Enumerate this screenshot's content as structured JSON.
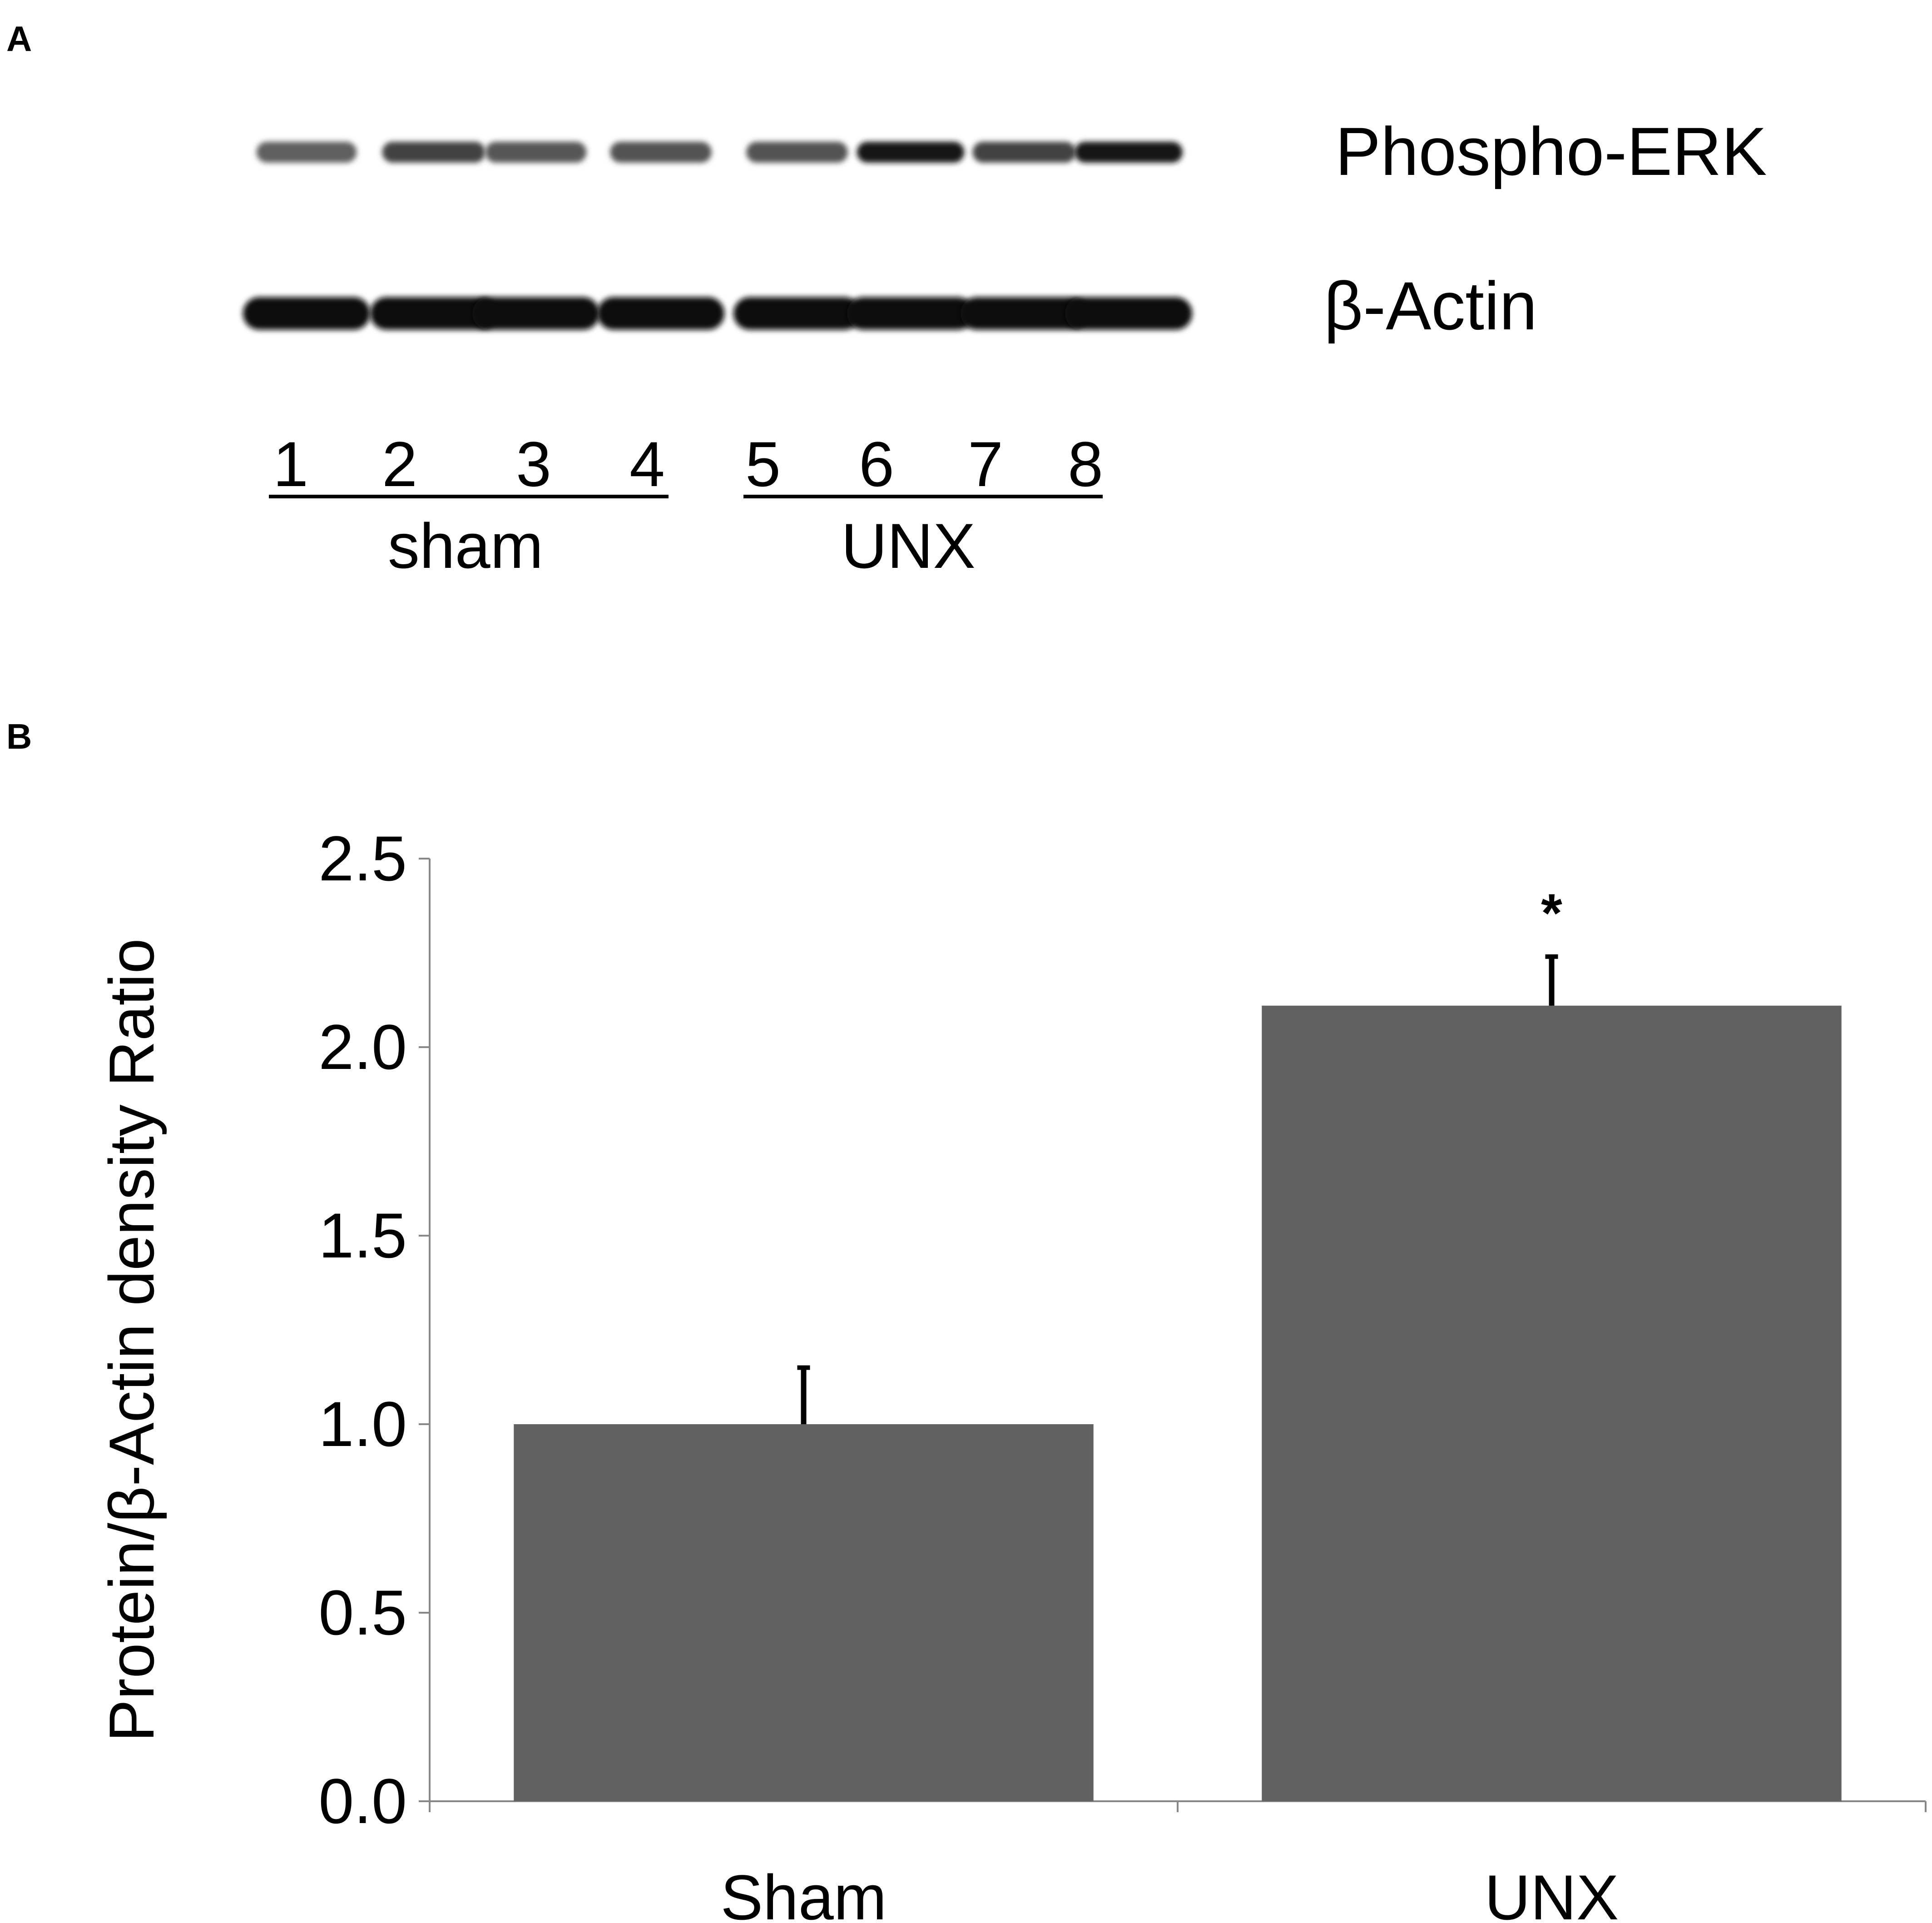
{
  "panel_a": {
    "label": "A",
    "blots": [
      {
        "name": "Phospho-ERK",
        "intensity": [
          0.55,
          0.7,
          0.6,
          0.62,
          0.62,
          0.92,
          0.7,
          0.95
        ]
      },
      {
        "name": "β-Actin",
        "intensity": [
          1,
          1,
          1,
          1,
          1,
          1,
          1,
          1
        ]
      }
    ],
    "lanes": [
      "1",
      "2",
      "3",
      "4",
      "5",
      "6",
      "7",
      "8"
    ],
    "groups": [
      {
        "label": "sham",
        "lanes": [
          1,
          2,
          3,
          4
        ]
      },
      {
        "label": "UNX",
        "lanes": [
          5,
          6,
          7,
          8
        ]
      }
    ]
  },
  "panel_b": {
    "label": "B"
  },
  "chart_data": {
    "type": "bar",
    "categories": [
      "Sham",
      "UNX"
    ],
    "values": [
      1.0,
      2.11
    ],
    "errors": [
      0.15,
      0.13
    ],
    "significance": [
      "",
      "*"
    ],
    "title": "",
    "xlabel": "",
    "ylabel": "Protein/β-Actin density Ratio",
    "ylim": [
      0,
      2.5
    ],
    "yticks": [
      "0.0",
      "0.5",
      "1.0",
      "1.5",
      "2.0",
      "2.5"
    ],
    "grid": false,
    "bar_color": "#616161"
  }
}
